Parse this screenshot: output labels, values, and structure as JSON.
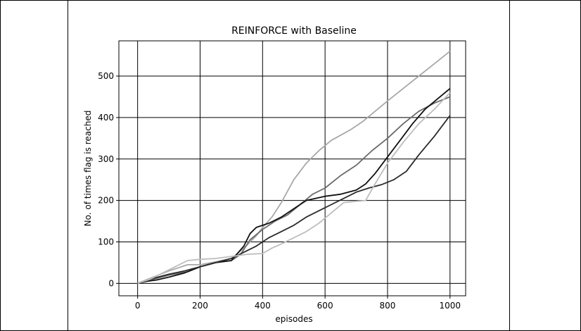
{
  "chart_data": {
    "type": "line",
    "title": "REINFORCE with Baseline",
    "xlabel": "episodes",
    "ylabel": "No. of times flag is reached",
    "xlim": [
      -60,
      1050
    ],
    "ylim": [
      -30,
      585
    ],
    "xticks": [
      0,
      200,
      400,
      600,
      800,
      1000
    ],
    "yticks": [
      0,
      100,
      200,
      300,
      400,
      500
    ],
    "grid": true,
    "series": [
      {
        "color": "#a8a8a8",
        "points": [
          [
            0,
            0
          ],
          [
            50,
            15
          ],
          [
            100,
            30
          ],
          [
            160,
            45
          ],
          [
            200,
            45
          ],
          [
            250,
            52
          ],
          [
            300,
            60
          ],
          [
            340,
            85
          ],
          [
            380,
            115
          ],
          [
            400,
            135
          ],
          [
            430,
            160
          ],
          [
            460,
            195
          ],
          [
            500,
            250
          ],
          [
            540,
            290
          ],
          [
            580,
            320
          ],
          [
            620,
            345
          ],
          [
            680,
            370
          ],
          [
            720,
            390
          ],
          [
            760,
            415
          ],
          [
            800,
            440
          ],
          [
            850,
            470
          ],
          [
            900,
            500
          ],
          [
            950,
            530
          ],
          [
            1000,
            560
          ]
        ]
      },
      {
        "color": "#6b6b6b",
        "points": [
          [
            0,
            0
          ],
          [
            50,
            10
          ],
          [
            100,
            20
          ],
          [
            160,
            28
          ],
          [
            200,
            40
          ],
          [
            250,
            50
          ],
          [
            300,
            55
          ],
          [
            330,
            70
          ],
          [
            360,
            105
          ],
          [
            400,
            130
          ],
          [
            440,
            150
          ],
          [
            480,
            165
          ],
          [
            520,
            190
          ],
          [
            560,
            215
          ],
          [
            600,
            230
          ],
          [
            650,
            260
          ],
          [
            700,
            285
          ],
          [
            750,
            320
          ],
          [
            800,
            350
          ],
          [
            850,
            385
          ],
          [
            900,
            415
          ],
          [
            950,
            435
          ],
          [
            1000,
            450
          ]
        ]
      },
      {
        "color": "#111111",
        "points": [
          [
            0,
            0
          ],
          [
            30,
            5
          ],
          [
            60,
            8
          ],
          [
            100,
            15
          ],
          [
            150,
            25
          ],
          [
            200,
            40
          ],
          [
            250,
            50
          ],
          [
            300,
            55
          ],
          [
            340,
            90
          ],
          [
            360,
            120
          ],
          [
            380,
            135
          ],
          [
            420,
            145
          ],
          [
            460,
            160
          ],
          [
            500,
            180
          ],
          [
            540,
            200
          ],
          [
            600,
            210
          ],
          [
            650,
            215
          ],
          [
            700,
            225
          ],
          [
            730,
            240
          ],
          [
            760,
            265
          ],
          [
            800,
            305
          ],
          [
            850,
            355
          ],
          [
            880,
            385
          ],
          [
            920,
            420
          ],
          [
            960,
            445
          ],
          [
            1000,
            470
          ]
        ]
      },
      {
        "color": "#2a2a2a",
        "points": [
          [
            0,
            0
          ],
          [
            50,
            12
          ],
          [
            100,
            22
          ],
          [
            150,
            30
          ],
          [
            200,
            40
          ],
          [
            250,
            50
          ],
          [
            300,
            60
          ],
          [
            340,
            75
          ],
          [
            380,
            90
          ],
          [
            420,
            110
          ],
          [
            460,
            125
          ],
          [
            500,
            140
          ],
          [
            540,
            160
          ],
          [
            580,
            175
          ],
          [
            620,
            190
          ],
          [
            660,
            205
          ],
          [
            700,
            220
          ],
          [
            740,
            230
          ],
          [
            780,
            238
          ],
          [
            820,
            250
          ],
          [
            860,
            270
          ],
          [
            900,
            310
          ],
          [
            950,
            355
          ],
          [
            1000,
            405
          ]
        ]
      },
      {
        "color": "#bdbdbd",
        "points": [
          [
            0,
            0
          ],
          [
            40,
            10
          ],
          [
            80,
            25
          ],
          [
            120,
            40
          ],
          [
            160,
            55
          ],
          [
            200,
            58
          ],
          [
            250,
            60
          ],
          [
            300,
            65
          ],
          [
            350,
            70
          ],
          [
            400,
            72
          ],
          [
            430,
            85
          ],
          [
            460,
            95
          ],
          [
            500,
            110
          ],
          [
            540,
            125
          ],
          [
            580,
            145
          ],
          [
            620,
            170
          ],
          [
            660,
            195
          ],
          [
            700,
            198
          ],
          [
            730,
            200
          ],
          [
            760,
            240
          ],
          [
            800,
            290
          ],
          [
            850,
            340
          ],
          [
            900,
            385
          ],
          [
            950,
            420
          ],
          [
            1000,
            460
          ]
        ]
      }
    ]
  }
}
